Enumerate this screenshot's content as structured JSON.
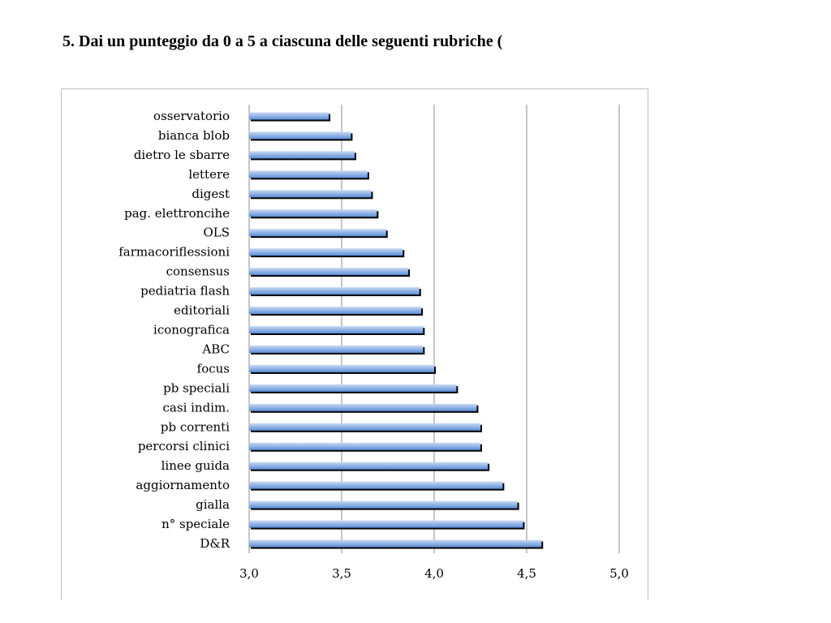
{
  "title": "5. Dai un punteggio da 0 a 5 a ciascuna delle seguenti rubriche (",
  "chart_data": {
    "type": "bar",
    "orientation": "horizontal",
    "categories": [
      "osservatorio",
      "bianca blob",
      "dietro le sbarre",
      "lettere",
      "digest",
      "pag. elettroncihe",
      "OLS",
      "farmacoriflessioni",
      "consensus",
      "pediatria flash",
      "editoriali",
      "iconografica",
      "ABC",
      "focus",
      "pb speciali",
      "casi indim.",
      "pb correnti",
      "percorsi clinici",
      "linee guida",
      "aggiornamento",
      "gialla",
      "n° speciale",
      "D&R"
    ],
    "values": [
      3.43,
      3.55,
      3.57,
      3.64,
      3.66,
      3.69,
      3.74,
      3.83,
      3.86,
      3.92,
      3.93,
      3.94,
      3.94,
      4.0,
      4.12,
      4.23,
      4.25,
      4.25,
      4.29,
      4.37,
      4.45,
      4.48,
      4.58
    ],
    "xlim": [
      3.0,
      5.0
    ],
    "xticks": [
      "3,0",
      "3,5",
      "4,0",
      "4,5",
      "5,0"
    ],
    "xtick_values": [
      3.0,
      3.5,
      4.0,
      4.5,
      5.0
    ],
    "grid": "vertical",
    "legend": "none",
    "bar_color": "#5b8ed6",
    "bar_highlight": "#c9daf3",
    "shadow_color": "#000000",
    "xlabel": "",
    "ylabel": ""
  }
}
